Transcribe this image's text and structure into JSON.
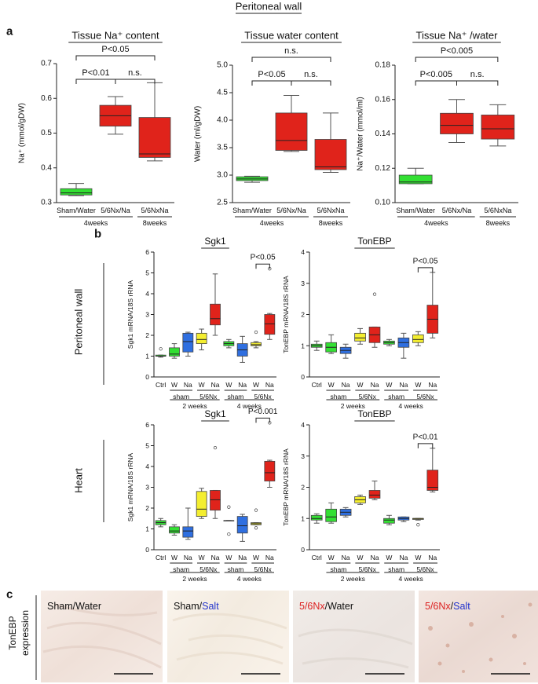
{
  "figure_title": "Peritoneal wall",
  "panel_labels": [
    "a",
    "b",
    "c"
  ],
  "panel_b_rows": [
    "Peritoneal wall",
    "Heart"
  ],
  "chart_data": [
    {
      "type": "box",
      "title": "Tissue Na⁺ content",
      "y_label": "Na⁺ (mmol/gDW)",
      "ylim": [
        0.3,
        0.7
      ],
      "yticks": [
        0.3,
        0.4,
        0.5,
        0.6,
        0.7
      ],
      "categories": [
        "Sham/Water",
        "5/6Nx/Na",
        "5/6NxNa"
      ],
      "groups": [
        {
          "label": "4weeks",
          "from": 0,
          "to": 1
        },
        {
          "label": "8weeks",
          "from": 2,
          "to": 2
        }
      ],
      "boxes": [
        {
          "color": "#33e033",
          "min": 0.32,
          "q1": 0.322,
          "median": 0.328,
          "q3": 0.34,
          "max": 0.355,
          "outliers": []
        },
        {
          "color": "#e0231b",
          "min": 0.497,
          "q1": 0.52,
          "median": 0.55,
          "q3": 0.58,
          "max": 0.605,
          "outliers": []
        },
        {
          "color": "#e0231b",
          "min": 0.42,
          "q1": 0.43,
          "median": 0.44,
          "q3": 0.545,
          "max": 0.645,
          "outliers": []
        }
      ],
      "comparisons": [
        {
          "from": 0,
          "to": 2,
          "label": "P<0.05"
        },
        {
          "from": 0,
          "to": 1,
          "label": "P<0.01"
        },
        {
          "from": 1,
          "to": 2,
          "label": "n.s."
        }
      ]
    },
    {
      "type": "box",
      "title": "Tissue water content",
      "y_label": "Water (ml/gDW)",
      "ylim": [
        2.5,
        5.0
      ],
      "yticks": [
        2.5,
        {
          "value": 3,
          "label": "3.0"
        },
        3.5,
        {
          "value": 4,
          "label": "4.0"
        },
        4.5,
        {
          "value": 5,
          "label": "5.0"
        }
      ],
      "categories": [
        "Sham/Water",
        "5/6Nx/Na",
        "5/6NxNa"
      ],
      "groups": [
        {
          "label": "4weeks",
          "from": 0,
          "to": 1
        },
        {
          "label": "8weeks",
          "from": 2,
          "to": 2
        }
      ],
      "boxes": [
        {
          "color": "#33e033",
          "min": 2.87,
          "q1": 2.9,
          "median": 2.93,
          "q3": 2.97,
          "max": 2.98,
          "outliers": []
        },
        {
          "color": "#e0231b",
          "min": 3.43,
          "q1": 3.45,
          "median": 3.63,
          "q3": 4.13,
          "max": 4.45,
          "outliers": []
        },
        {
          "color": "#e0231b",
          "min": 3.05,
          "q1": 3.1,
          "median": 3.15,
          "q3": 3.65,
          "max": 4.13,
          "outliers": []
        }
      ],
      "comparisons": [
        {
          "from": 0,
          "to": 2,
          "label": "n.s."
        },
        {
          "from": 0,
          "to": 1,
          "label": "P<0.05"
        },
        {
          "from": 1,
          "to": 2,
          "label": "n.s."
        }
      ]
    },
    {
      "type": "box",
      "title": "Tissue Na⁺ /water",
      "y_label": "Na⁺/Water (mmol/ml)",
      "ylim": [
        0.1,
        0.18
      ],
      "yticks": [
        {
          "value": 0.1,
          "label": "0.10"
        },
        0.12,
        0.14,
        0.16,
        0.18
      ],
      "categories": [
        "Sham/Water",
        "5/6Nx/Na",
        "5/6NxNa"
      ],
      "groups": [
        {
          "label": "4weeks",
          "from": 0,
          "to": 1
        },
        {
          "label": "8weeks",
          "from": 2,
          "to": 2
        }
      ],
      "boxes": [
        {
          "color": "#33e033",
          "min": 0.111,
          "q1": 0.111,
          "median": 0.112,
          "q3": 0.116,
          "max": 0.12,
          "outliers": []
        },
        {
          "color": "#e0231b",
          "min": 0.135,
          "q1": 0.14,
          "median": 0.145,
          "q3": 0.152,
          "max": 0.16,
          "outliers": []
        },
        {
          "color": "#e0231b",
          "min": 0.133,
          "q1": 0.137,
          "median": 0.143,
          "q3": 0.151,
          "max": 0.157,
          "outliers": []
        }
      ],
      "comparisons": [
        {
          "from": 0,
          "to": 2,
          "label": "P<0.005"
        },
        {
          "from": 0,
          "to": 1,
          "label": "P<0.005"
        },
        {
          "from": 1,
          "to": 2,
          "label": "n.s."
        }
      ]
    },
    {
      "type": "box",
      "title": "Sgk1",
      "y_label": "Sgk1 mRNA/18S rRNA",
      "ylim": [
        0,
        6
      ],
      "yticks": [
        0,
        1,
        2,
        3,
        4,
        5,
        6
      ],
      "categories": [
        "Ctrl",
        "W",
        "Na",
        "W",
        "Na",
        "W",
        "Na",
        "W",
        "Na"
      ],
      "groups": [
        {
          "label": "sham",
          "from": 1,
          "to": 2
        },
        {
          "label": "5/6Nx",
          "from": 3,
          "to": 4
        },
        {
          "label": "sham",
          "from": 5,
          "to": 6
        },
        {
          "label": "5/6Nx",
          "from": 7,
          "to": 8
        }
      ],
      "supergroups": [
        {
          "label": "2 weeks",
          "from": 1,
          "to": 4
        },
        {
          "label": "4 weeks",
          "from": 5,
          "to": 8
        }
      ],
      "boxes": [
        {
          "color": "#33e033",
          "min": 0.95,
          "q1": 1.0,
          "median": 1.0,
          "q3": 1.05,
          "max": 1.05,
          "outliers": [
            1.35
          ]
        },
        {
          "color": "#33e033",
          "min": 0.9,
          "q1": 1.0,
          "median": 1.1,
          "q3": 1.4,
          "max": 1.6,
          "outliers": []
        },
        {
          "color": "#2f6fe0",
          "min": 1.0,
          "q1": 1.2,
          "median": 1.7,
          "q3": 2.1,
          "max": 2.15,
          "outliers": []
        },
        {
          "color": "#f4ee30",
          "min": 1.3,
          "q1": 1.6,
          "median": 1.8,
          "q3": 2.1,
          "max": 2.3,
          "outliers": []
        },
        {
          "color": "#e0231b",
          "min": 2.0,
          "q1": 2.5,
          "median": 2.8,
          "q3": 3.5,
          "max": 4.95,
          "outliers": []
        },
        {
          "color": "#33e033",
          "min": 1.4,
          "q1": 1.5,
          "median": 1.6,
          "q3": 1.7,
          "max": 1.8,
          "outliers": []
        },
        {
          "color": "#2f6fe0",
          "min": 0.7,
          "q1": 1.0,
          "median": 1.3,
          "q3": 1.6,
          "max": 1.95,
          "outliers": []
        },
        {
          "color": "#f4ee30",
          "min": 1.4,
          "q1": 1.5,
          "median": 1.55,
          "q3": 1.65,
          "max": 1.7,
          "outliers": [
            2.15
          ]
        },
        {
          "color": "#e0231b",
          "min": 1.8,
          "q1": 2.05,
          "median": 2.55,
          "q3": 3.0,
          "max": 3.05,
          "outliers": [
            5.2
          ]
        }
      ],
      "comparisons": [
        {
          "from": 7,
          "to": 8,
          "label": "P<0.05"
        }
      ]
    },
    {
      "type": "box",
      "title": "TonEBP",
      "y_label": "TonEBP mRNA/18S rRNA",
      "ylim": [
        0,
        4
      ],
      "yticks": [
        0,
        1,
        2,
        3,
        4
      ],
      "categories": [
        "Ctrl",
        "W",
        "Na",
        "W",
        "Na",
        "W",
        "Na",
        "W",
        "Na"
      ],
      "groups": [
        {
          "label": "sham",
          "from": 1,
          "to": 2
        },
        {
          "label": "5/6Nx",
          "from": 3,
          "to": 4
        },
        {
          "label": "sham",
          "from": 5,
          "to": 6
        },
        {
          "label": "5/6Nx",
          "from": 7,
          "to": 8
        }
      ],
      "supergroups": [
        {
          "label": "2 weeks",
          "from": 1,
          "to": 4
        },
        {
          "label": "4 weeks",
          "from": 5,
          "to": 8
        }
      ],
      "boxes": [
        {
          "color": "#33e033",
          "min": 0.85,
          "q1": 0.95,
          "median": 1.0,
          "q3": 1.05,
          "max": 1.15,
          "outliers": []
        },
        {
          "color": "#33e033",
          "min": 0.75,
          "q1": 0.8,
          "median": 0.95,
          "q3": 1.1,
          "max": 1.35,
          "outliers": []
        },
        {
          "color": "#2f6fe0",
          "min": 0.6,
          "q1": 0.75,
          "median": 0.85,
          "q3": 0.95,
          "max": 1.05,
          "outliers": []
        },
        {
          "color": "#f4ee30",
          "min": 1.05,
          "q1": 1.15,
          "median": 1.25,
          "q3": 1.4,
          "max": 1.55,
          "outliers": []
        },
        {
          "color": "#e0231b",
          "min": 0.95,
          "q1": 1.1,
          "median": 1.35,
          "q3": 1.6,
          "max": 1.6,
          "outliers": [
            2.65
          ]
        },
        {
          "color": "#33e033",
          "min": 1.0,
          "q1": 1.05,
          "median": 1.1,
          "q3": 1.15,
          "max": 1.2,
          "outliers": []
        },
        {
          "color": "#2f6fe0",
          "min": 0.6,
          "q1": 0.95,
          "median": 1.1,
          "q3": 1.25,
          "max": 1.4,
          "outliers": []
        },
        {
          "color": "#f4ee30",
          "min": 1.0,
          "q1": 1.1,
          "median": 1.2,
          "q3": 1.35,
          "max": 1.45,
          "outliers": []
        },
        {
          "color": "#e0231b",
          "min": 1.25,
          "q1": 1.4,
          "median": 1.85,
          "q3": 2.3,
          "max": 3.35,
          "outliers": []
        }
      ],
      "comparisons": [
        {
          "from": 7,
          "to": 8,
          "label": "P<0.05"
        }
      ]
    },
    {
      "type": "box",
      "title": "Sgk1",
      "y_label": "Sgk1 mRNA/18S rRNA",
      "ylim": [
        0,
        6
      ],
      "yticks": [
        0,
        1,
        2,
        3,
        4,
        5,
        6
      ],
      "categories": [
        "Ctrl",
        "W",
        "Na",
        "W",
        "Na",
        "W",
        "Na",
        "W",
        "Na"
      ],
      "groups": [
        {
          "label": "sham",
          "from": 1,
          "to": 2
        },
        {
          "label": "5/6Nx",
          "from": 3,
          "to": 4
        },
        {
          "label": "sham",
          "from": 5,
          "to": 6
        },
        {
          "label": "5/6Nx",
          "from": 7,
          "to": 8
        }
      ],
      "supergroups": [
        {
          "label": "2 weeks",
          "from": 1,
          "to": 4
        },
        {
          "label": "4 weeks",
          "from": 5,
          "to": 8
        }
      ],
      "boxes": [
        {
          "color": "#33e033",
          "min": 1.1,
          "q1": 1.2,
          "median": 1.3,
          "q3": 1.4,
          "max": 1.5,
          "outliers": []
        },
        {
          "color": "#33e033",
          "min": 0.7,
          "q1": 0.8,
          "median": 0.9,
          "q3": 1.1,
          "max": 1.2,
          "outliers": []
        },
        {
          "color": "#2f6fe0",
          "min": 0.5,
          "q1": 0.6,
          "median": 0.9,
          "q3": 1.1,
          "max": 2.0,
          "outliers": []
        },
        {
          "color": "#f4ee30",
          "min": 1.5,
          "q1": 1.6,
          "median": 1.95,
          "q3": 2.8,
          "max": 2.95,
          "outliers": []
        },
        {
          "color": "#e0231b",
          "min": 1.5,
          "q1": 1.9,
          "median": 2.4,
          "q3": 2.85,
          "max": 2.85,
          "outliers": [
            4.9
          ]
        },
        {
          "color": "#33e033",
          "min": 1.4,
          "q1": 1.4,
          "median": 1.4,
          "q3": 1.4,
          "max": 1.4,
          "outliers": [
            2.05,
            0.75
          ]
        },
        {
          "color": "#2f6fe0",
          "min": 0.4,
          "q1": 0.8,
          "median": 1.15,
          "q3": 1.6,
          "max": 1.7,
          "outliers": []
        },
        {
          "color": "#f4ee30",
          "min": 1.2,
          "q1": 1.2,
          "median": 1.25,
          "q3": 1.3,
          "max": 1.3,
          "outliers": [
            1.9,
            1.05
          ]
        },
        {
          "color": "#e0231b",
          "min": 3.0,
          "q1": 3.3,
          "median": 3.7,
          "q3": 4.25,
          "max": 4.3,
          "outliers": [
            6.1
          ]
        }
      ],
      "comparisons": [
        {
          "from": 7,
          "to": 8,
          "label": "P<0.001"
        }
      ]
    },
    {
      "type": "box",
      "title": "TonEBP",
      "y_label": "TonEBP mRNA/18S rRNA",
      "ylim": [
        0,
        4
      ],
      "yticks": [
        0,
        1,
        2,
        3,
        4
      ],
      "categories": [
        "Ctrl",
        "W",
        "Na",
        "W",
        "Na",
        "W",
        "Na",
        "W",
        "Na"
      ],
      "groups": [
        {
          "label": "sham",
          "from": 1,
          "to": 2
        },
        {
          "label": "5/6Nx",
          "from": 3,
          "to": 4
        },
        {
          "label": "sham",
          "from": 5,
          "to": 6
        },
        {
          "label": "5/6Nx",
          "from": 7,
          "to": 8
        }
      ],
      "supergroups": [
        {
          "label": "2 weeks",
          "from": 1,
          "to": 4
        },
        {
          "label": "4 weeks",
          "from": 5,
          "to": 8
        }
      ],
      "boxes": [
        {
          "color": "#33e033",
          "min": 0.85,
          "q1": 0.95,
          "median": 1.0,
          "q3": 1.1,
          "max": 1.15,
          "outliers": []
        },
        {
          "color": "#33e033",
          "min": 0.85,
          "q1": 0.9,
          "median": 1.05,
          "q3": 1.3,
          "max": 1.5,
          "outliers": []
        },
        {
          "color": "#2f6fe0",
          "min": 1.05,
          "q1": 1.1,
          "median": 1.2,
          "q3": 1.3,
          "max": 1.35,
          "outliers": []
        },
        {
          "color": "#f4ee30",
          "min": 1.45,
          "q1": 1.5,
          "median": 1.6,
          "q3": 1.7,
          "max": 1.75,
          "outliers": []
        },
        {
          "color": "#e0231b",
          "min": 1.6,
          "q1": 1.65,
          "median": 1.75,
          "q3": 1.9,
          "max": 2.2,
          "outliers": []
        },
        {
          "color": "#33e033",
          "min": 0.8,
          "q1": 0.85,
          "median": 0.95,
          "q3": 1.0,
          "max": 1.1,
          "outliers": []
        },
        {
          "color": "#2f6fe0",
          "min": 0.9,
          "q1": 0.95,
          "median": 1.0,
          "q3": 1.05,
          "max": 1.05,
          "outliers": []
        },
        {
          "color": "#f4ee30",
          "min": 0.95,
          "q1": 0.97,
          "median": 1.0,
          "q3": 1.0,
          "max": 1.0,
          "outliers": [
            0.8
          ]
        },
        {
          "color": "#e0231b",
          "min": 1.85,
          "q1": 1.9,
          "median": 2.0,
          "q3": 2.55,
          "max": 3.25,
          "outliers": []
        }
      ],
      "comparisons": [
        {
          "from": 7,
          "to": 8,
          "label": "P<0.01"
        }
      ]
    }
  ],
  "panel_c": {
    "row_label": [
      "TonEBP",
      "expression"
    ],
    "images": [
      [
        {
          "text": "Sham/Water",
          "color": "#111111"
        }
      ],
      [
        {
          "text": "Sham/",
          "color": "#111111"
        },
        {
          "text": "Salt",
          "color": "#2233cc"
        }
      ],
      [
        {
          "text": "5/6Nx",
          "color": "#dd2222"
        },
        {
          "text": "/Water",
          "color": "#111111"
        }
      ],
      [
        {
          "text": "5/6Nx",
          "color": "#dd2222"
        },
        {
          "text": "/",
          "color": "#111111"
        },
        {
          "text": "Salt",
          "color": "#2233cc"
        }
      ]
    ]
  }
}
